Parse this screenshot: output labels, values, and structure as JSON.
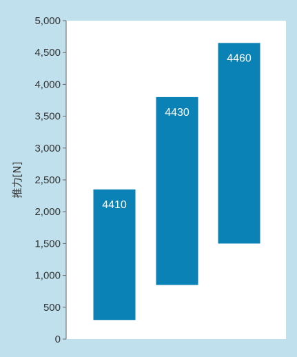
{
  "chart_data": {
    "type": "bar",
    "title": "",
    "xlabel": "",
    "ylabel": "推力[N]",
    "ylim": [
      0,
      5000
    ],
    "yticks": [
      "0",
      "500",
      "1,000",
      "1,500",
      "2,000",
      "2,500",
      "3,000",
      "3,500",
      "4,000",
      "4,500",
      "5,000"
    ],
    "grid": false,
    "series": [
      {
        "categories": [
          "4410",
          "4430",
          "4460"
        ],
        "ranges": [
          [
            300,
            2350
          ],
          [
            850,
            3800
          ],
          [
            1500,
            4650
          ]
        ]
      }
    ],
    "colors": {
      "bar": "#0a82b5",
      "background": "#bfe0ec",
      "plot_area": "#ffffff"
    }
  }
}
